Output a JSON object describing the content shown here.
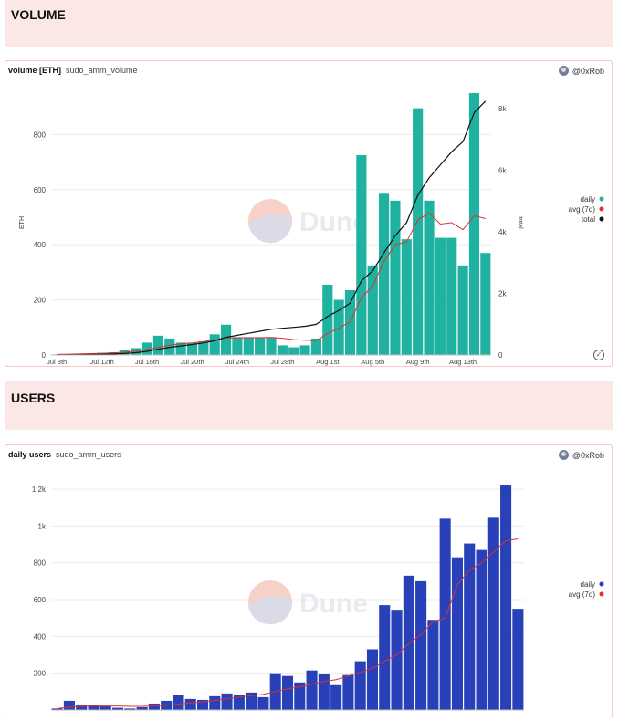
{
  "volume_section": {
    "title": "VOLUME"
  },
  "volume_card": {
    "title_bold": "volume [ETH]",
    "title_sub": "sudo_amm_volume",
    "author": "@0xRob",
    "watermark": "Dune",
    "check_icon": "check-circle-icon"
  },
  "users_section": {
    "title": "USERS"
  },
  "users_card": {
    "title_bold": "daily users",
    "title_sub": "sudo_amm_users",
    "author": "@0xRob",
    "watermark": "Dune"
  },
  "chart_data": [
    {
      "type": "bar",
      "title": "volume [ETH]",
      "subtitle": "sudo_amm_volume",
      "ylabel": "ETH",
      "y2label": "total",
      "ylim": [
        0,
        960
      ],
      "y2lim": [
        0,
        8600
      ],
      "yticks": [
        0,
        200,
        400,
        600,
        800
      ],
      "y2ticks": [
        0,
        2000,
        4000,
        6000,
        8000
      ],
      "y2ticklabels": [
        "0",
        "2k",
        "4k",
        "6k",
        "8k"
      ],
      "grid": true,
      "legend_position": "right",
      "xtick_labels": [
        "Jul 8th",
        "Jul 12th",
        "Jul 16th",
        "Jul 20th",
        "Jul 24th",
        "Jul 28th",
        "Aug 1st",
        "Aug 5th",
        "Aug 9th",
        "Aug 13th"
      ],
      "xtick_index": [
        0,
        4,
        8,
        12,
        16,
        20,
        24,
        28,
        32,
        36
      ],
      "colors": {
        "daily": "#20b2a0",
        "avg": "#e0302e",
        "total": "#111111"
      },
      "series": [
        {
          "name": "daily",
          "kind": "bar",
          "values": [
            2,
            3,
            4,
            5,
            8,
            10,
            18,
            25,
            45,
            70,
            60,
            45,
            45,
            50,
            75,
            110,
            65,
            65,
            65,
            65,
            35,
            28,
            35,
            60,
            255,
            200,
            235,
            725,
            325,
            585,
            560,
            420,
            895,
            560,
            425,
            425,
            325,
            950,
            370
          ]
        },
        {
          "name": "avg (7d)",
          "kind": "line",
          "values": [
            2,
            3,
            4,
            5,
            6,
            8,
            10,
            14,
            20,
            28,
            35,
            40,
            44,
            49,
            55,
            62,
            63,
            63,
            63,
            64,
            61,
            56,
            54,
            52,
            78,
            98,
            120,
            208,
            250,
            340,
            400,
            410,
            490,
            515,
            475,
            480,
            455,
            505,
            495
          ]
        },
        {
          "name": "total",
          "kind": "line",
          "axis": "right",
          "values": [
            2,
            5,
            9,
            14,
            22,
            32,
            50,
            75,
            120,
            190,
            250,
            295,
            340,
            390,
            465,
            575,
            640,
            705,
            770,
            835,
            870,
            900,
            935,
            995,
            1250,
            1450,
            1685,
            2410,
            2735,
            3320,
            3880,
            4300,
            5195,
            5755,
            6180,
            6605,
            6930,
            7880,
            8250
          ]
        }
      ]
    },
    {
      "type": "bar",
      "title": "daily users",
      "subtitle": "sudo_amm_users",
      "ylim": [
        0,
        1260
      ],
      "yticks": [
        200,
        400,
        600,
        800,
        1000,
        1200
      ],
      "yticklabels": [
        "200",
        "400",
        "600",
        "800",
        "1k",
        "1.2k"
      ],
      "grid": true,
      "legend_position": "right",
      "colors": {
        "daily": "#2840b8",
        "avg": "#e0302e"
      },
      "series": [
        {
          "name": "daily",
          "kind": "bar",
          "values": [
            8,
            50,
            30,
            25,
            20,
            12,
            8,
            15,
            35,
            50,
            80,
            60,
            55,
            75,
            90,
            80,
            95,
            70,
            200,
            185,
            150,
            215,
            195,
            135,
            190,
            265,
            330,
            570,
            545,
            730,
            700,
            490,
            1040,
            830,
            905,
            870,
            1045,
            1225,
            550
          ]
        },
        {
          "name": "avg (7d)",
          "kind": "line",
          "values": [
            8,
            15,
            20,
            22,
            22,
            22,
            20,
            20,
            22,
            25,
            32,
            38,
            44,
            52,
            62,
            70,
            78,
            85,
            100,
            115,
            125,
            140,
            155,
            165,
            185,
            205,
            225,
            265,
            300,
            360,
            410,
            480,
            500,
            680,
            760,
            800,
            860,
            920,
            930
          ]
        }
      ]
    }
  ]
}
